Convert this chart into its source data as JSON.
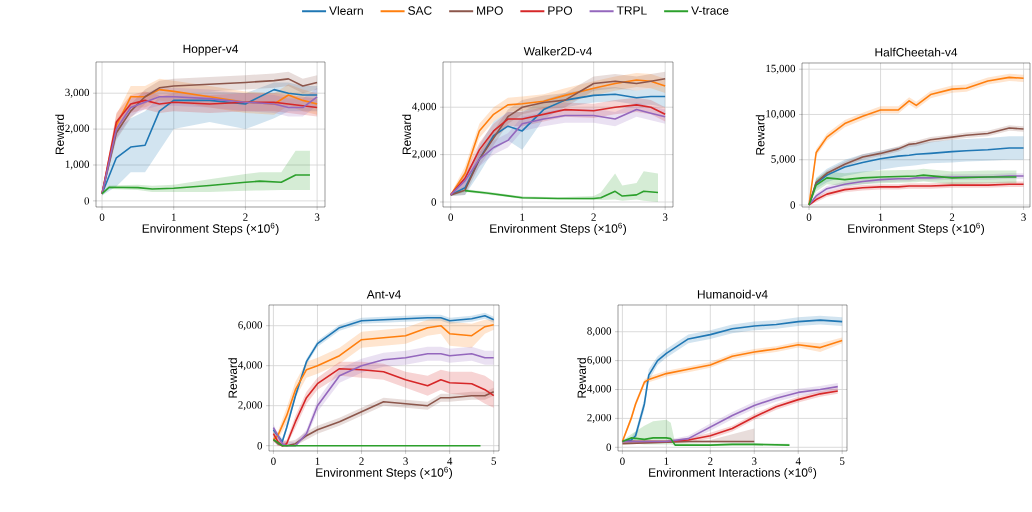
{
  "chart_data": [
    {
      "type": "line",
      "title": "Hopper-v4",
      "xlabel": "Environment Steps (×10$^{6}$)",
      "ylabel": "Reward",
      "xlim": [
        -0.084,
        3.11
      ],
      "ylim": [
        -170,
        3870
      ],
      "xticks": [
        0,
        1,
        2,
        3
      ],
      "yticks": [
        0,
        {
          "value": 1000,
          "label": "1,000"
        },
        {
          "value": 2000,
          "label": "2,000"
        },
        {
          "value": 3000,
          "label": "3,000"
        }
      ],
      "grid": true,
      "legend": "top",
      "line_style": "solid",
      "marker": "none",
      "series": [
        {
          "name": "Vlearn",
          "color": "#1f77b4",
          "x": [
            0,
            0.2,
            0.4,
            0.6,
            0.8,
            1.0,
            1.5,
            2.0,
            2.4,
            2.6,
            2.8,
            3.0
          ],
          "values": [
            200,
            1200,
            1500,
            1550,
            2500,
            2800,
            2800,
            2700,
            3100,
            3000,
            2950,
            2950
          ],
          "lower": [
            150,
            400,
            800,
            800,
            1400,
            2000,
            2200,
            2000,
            2300,
            2500,
            2500,
            2500
          ],
          "upper": [
            250,
            2000,
            2300,
            2500,
            2900,
            3000,
            3050,
            3000,
            3300,
            3300,
            3200,
            3200
          ]
        },
        {
          "name": "SAC",
          "color": "#ff7f0e",
          "x": [
            0,
            0.2,
            0.4,
            0.6,
            0.8,
            1.0,
            1.5,
            2.0,
            2.4,
            2.6,
            2.8,
            3.0
          ],
          "values": [
            200,
            2100,
            2900,
            2900,
            3100,
            3050,
            2900,
            2750,
            2700,
            2950,
            2800,
            2700
          ],
          "lower": [
            150,
            1800,
            2600,
            2600,
            2800,
            2750,
            2600,
            2450,
            2400,
            2650,
            2500,
            2400
          ],
          "upper": [
            250,
            2400,
            3200,
            3200,
            3400,
            3350,
            3200,
            3050,
            3000,
            3250,
            3100,
            3000
          ]
        },
        {
          "name": "MPO",
          "color": "#8c564b",
          "x": [
            0,
            0.2,
            0.4,
            0.6,
            0.8,
            1.0,
            1.5,
            2.0,
            2.4,
            2.6,
            2.8,
            3.0
          ],
          "values": [
            200,
            1900,
            2500,
            2900,
            3150,
            3200,
            3250,
            3300,
            3350,
            3400,
            3200,
            3300
          ],
          "lower": [
            150,
            1700,
            2300,
            2700,
            2950,
            3000,
            3050,
            3100,
            3150,
            3200,
            3000,
            3100
          ],
          "upper": [
            250,
            2100,
            2700,
            3100,
            3350,
            3400,
            3450,
            3500,
            3550,
            3600,
            3400,
            3500
          ]
        },
        {
          "name": "PPO",
          "color": "#d62728",
          "x": [
            0,
            0.2,
            0.4,
            0.6,
            0.8,
            1.0,
            1.5,
            2.0,
            2.4,
            2.6,
            2.8,
            3.0
          ],
          "values": [
            200,
            2200,
            2700,
            2800,
            2700,
            2750,
            2700,
            2750,
            2750,
            2700,
            2650,
            2600
          ],
          "lower": [
            150,
            1950,
            2450,
            2550,
            2450,
            2500,
            2450,
            2500,
            2500,
            2450,
            2400,
            2350
          ],
          "upper": [
            250,
            2450,
            2950,
            3050,
            2950,
            3000,
            2950,
            3000,
            3000,
            2950,
            2900,
            2850
          ]
        },
        {
          "name": "TRPL",
          "color": "#9467bd",
          "x": [
            0,
            0.2,
            0.4,
            0.6,
            0.8,
            1.0,
            1.5,
            2.0,
            2.4,
            2.6,
            2.8,
            3.0
          ],
          "values": [
            200,
            2000,
            2600,
            2750,
            2900,
            2900,
            2850,
            2750,
            2700,
            2600,
            2600,
            2900
          ],
          "lower": [
            150,
            1750,
            2350,
            2550,
            2650,
            2650,
            2600,
            2500,
            2450,
            2350,
            2350,
            2650
          ],
          "upper": [
            250,
            2250,
            2850,
            3000,
            3150,
            3150,
            3100,
            3000,
            2950,
            2850,
            2850,
            3150
          ]
        },
        {
          "name": "V-trace",
          "color": "#2ca02c",
          "x": [
            0,
            0.1,
            0.5,
            0.7,
            1.0,
            1.5,
            2.0,
            2.2,
            2.5,
            2.7,
            2.9
          ],
          "values": [
            200,
            380,
            370,
            330,
            350,
            430,
            520,
            550,
            520,
            720,
            720
          ],
          "lower": [
            150,
            330,
            300,
            250,
            250,
            250,
            280,
            290,
            300,
            300,
            300
          ],
          "upper": [
            250,
            430,
            450,
            420,
            450,
            600,
            750,
            800,
            800,
            1400,
            1400
          ]
        }
      ]
    },
    {
      "type": "line",
      "title": "Walker2D-v4",
      "xlabel": "Environment Steps (×10$^{6}$)",
      "ylabel": "Reward",
      "xlim": [
        -0.108,
        3.11
      ],
      "ylim": [
        -211,
        5910
      ],
      "xticks": [
        0,
        1,
        2,
        3
      ],
      "yticks": [
        0,
        {
          "value": 2000,
          "label": "2,000"
        },
        {
          "value": 4000,
          "label": "4,000"
        }
      ],
      "grid": true,
      "line_style": "solid",
      "marker": "none",
      "series": [
        {
          "color": "#1f77b4",
          "x": [
            0,
            0.2,
            0.4,
            0.6,
            0.8,
            1.0,
            1.3,
            1.6,
            2.0,
            2.3,
            2.6,
            2.8,
            3.0
          ],
          "values": [
            300,
            600,
            1800,
            2800,
            3200,
            3000,
            3900,
            4300,
            4500,
            4550,
            4400,
            4450,
            4450
          ],
          "lower": [
            250,
            300,
            1200,
            2200,
            2600,
            2200,
            3500,
            4000,
            4200,
            4250,
            4100,
            4100,
            4000
          ],
          "upper": [
            350,
            900,
            2400,
            3400,
            3800,
            3800,
            4300,
            4600,
            4800,
            4850,
            4700,
            4800,
            4900
          ]
        },
        {
          "color": "#ff7f0e",
          "x": [
            0,
            0.2,
            0.4,
            0.6,
            0.8,
            1.0,
            1.3,
            1.6,
            2.0,
            2.3,
            2.6,
            2.8,
            3.0
          ],
          "values": [
            300,
            1200,
            3000,
            3700,
            4100,
            4150,
            4250,
            4500,
            4800,
            5000,
            5150,
            5100,
            4900
          ],
          "lower": [
            250,
            900,
            2700,
            3400,
            3800,
            3850,
            3950,
            4200,
            4500,
            4700,
            4850,
            4800,
            4600
          ],
          "upper": [
            350,
            1500,
            3300,
            4000,
            4400,
            4450,
            4550,
            4800,
            5100,
            5300,
            5450,
            5400,
            5200
          ]
        },
        {
          "color": "#8c564b",
          "x": [
            0,
            0.2,
            0.4,
            0.6,
            0.8,
            1.0,
            1.3,
            1.6,
            2.0,
            2.3,
            2.6,
            2.8,
            3.0
          ],
          "values": [
            300,
            500,
            1800,
            2700,
            3600,
            4000,
            4200,
            4300,
            5000,
            5100,
            5000,
            5100,
            5200
          ],
          "lower": [
            250,
            300,
            1500,
            2400,
            3300,
            3700,
            3900,
            4000,
            4700,
            4800,
            4700,
            4800,
            4900
          ],
          "upper": [
            350,
            700,
            2100,
            3000,
            3900,
            4300,
            4500,
            4600,
            5300,
            5400,
            5300,
            5400,
            5500
          ]
        },
        {
          "color": "#d62728",
          "x": [
            0,
            0.2,
            0.4,
            0.6,
            0.8,
            1.0,
            1.3,
            1.6,
            2.0,
            2.3,
            2.6,
            2.8,
            3.0
          ],
          "values": [
            300,
            1000,
            2200,
            3000,
            3500,
            3500,
            3700,
            3900,
            3850,
            4000,
            4100,
            4000,
            3700
          ],
          "lower": [
            250,
            700,
            1900,
            2700,
            3200,
            3200,
            3400,
            3600,
            3550,
            3700,
            3800,
            3700,
            3400
          ],
          "upper": [
            350,
            1300,
            2500,
            3300,
            3800,
            3800,
            4000,
            4200,
            4150,
            4300,
            4400,
            4300,
            4000
          ]
        },
        {
          "color": "#9467bd",
          "x": [
            0,
            0.2,
            0.4,
            0.6,
            0.8,
            1.0,
            1.3,
            1.6,
            2.0,
            2.3,
            2.6,
            2.8,
            3.0
          ],
          "values": [
            300,
            900,
            1800,
            2300,
            2600,
            3300,
            3500,
            3650,
            3650,
            3500,
            3900,
            3750,
            3600
          ],
          "lower": [
            250,
            600,
            1500,
            2000,
            2300,
            3000,
            3200,
            3350,
            3350,
            3200,
            3600,
            3450,
            3300
          ],
          "upper": [
            350,
            1200,
            2100,
            2600,
            2900,
            3600,
            3800,
            3950,
            3950,
            3800,
            4200,
            4050,
            3900
          ]
        },
        {
          "color": "#2ca02c",
          "x": [
            0,
            0.2,
            0.5,
            1.0,
            1.5,
            2.0,
            2.1,
            2.3,
            2.4,
            2.6,
            2.7,
            2.9
          ],
          "values": [
            null,
            480,
            380,
            180,
            150,
            150,
            180,
            450,
            250,
            300,
            450,
            400
          ],
          "lower": [
            250,
            420,
            320,
            130,
            100,
            80,
            80,
            100,
            50,
            100,
            50,
            0
          ],
          "upper": [
            350,
            540,
            440,
            240,
            200,
            250,
            400,
            1200,
            700,
            800,
            1300,
            1200
          ]
        }
      ]
    },
    {
      "type": "line",
      "title": "HalfCheetah-v4",
      "xlabel": "Environment Steps (×10$^{6}$)",
      "ylabel": "Reward",
      "xlim": [
        -0.098,
        3.09
      ],
      "ylim": [
        -220,
        15690
      ],
      "xticks": [
        0,
        1,
        2,
        3
      ],
      "yticks": [
        0,
        {
          "value": 5000,
          "label": "5,000"
        },
        {
          "value": 10000,
          "label": "10,000"
        },
        {
          "value": 15000,
          "label": "15,000"
        }
      ],
      "grid": true,
      "line_style": "solid",
      "marker": "none",
      "series": [
        {
          "color": "#1f77b4",
          "x": [
            0,
            0.1,
            0.25,
            0.5,
            0.75,
            1.0,
            1.25,
            1.4,
            1.5,
            1.7,
            2.0,
            2.2,
            2.5,
            2.8,
            3.0
          ],
          "values": [
            0,
            2400,
            3300,
            4200,
            4700,
            5100,
            5400,
            5500,
            5600,
            5700,
            5900,
            6000,
            6100,
            6300,
            6300
          ],
          "lower": [
            0,
            1800,
            2500,
            3200,
            3600,
            3900,
            4200,
            4300,
            4400,
            4600,
            4700,
            4800,
            4900,
            5000,
            5000
          ],
          "upper": [
            0,
            3000,
            4000,
            5000,
            5600,
            6000,
            6400,
            6600,
            6800,
            7000,
            7200,
            7300,
            7400,
            7600,
            7600
          ]
        },
        {
          "color": "#ff7f0e",
          "x": [
            0,
            0.1,
            0.25,
            0.5,
            0.75,
            1.0,
            1.25,
            1.4,
            1.5,
            1.7,
            2.0,
            2.2,
            2.5,
            2.8,
            3.0
          ],
          "values": [
            0,
            5800,
            7500,
            9000,
            9800,
            10500,
            10500,
            11500,
            11000,
            12200,
            12800,
            12900,
            13700,
            14100,
            14000
          ],
          "lower": [
            0,
            5400,
            7100,
            8600,
            9400,
            10100,
            10100,
            11100,
            10600,
            11800,
            12400,
            12500,
            13300,
            13700,
            13600
          ],
          "upper": [
            0,
            6200,
            7900,
            9400,
            10200,
            10900,
            10900,
            11900,
            11400,
            12600,
            13200,
            13300,
            14100,
            14500,
            14400
          ]
        },
        {
          "color": "#8c564b",
          "x": [
            0,
            0.1,
            0.25,
            0.5,
            0.75,
            1.0,
            1.25,
            1.4,
            1.5,
            1.7,
            2.0,
            2.2,
            2.5,
            2.8,
            3.0
          ],
          "values": [
            0,
            2500,
            3500,
            4500,
            5300,
            5700,
            6200,
            6700,
            6800,
            7200,
            7500,
            7700,
            7900,
            8500,
            8400
          ],
          "lower": [
            0,
            2200,
            3200,
            4200,
            5000,
            5400,
            5900,
            6400,
            6500,
            6900,
            7200,
            7400,
            7600,
            8200,
            8100
          ],
          "upper": [
            0,
            2800,
            3800,
            4800,
            5600,
            6000,
            6500,
            7000,
            7100,
            7500,
            7800,
            8000,
            8200,
            8800,
            8700
          ]
        },
        {
          "color": "#d62728",
          "x": [
            0,
            0.1,
            0.25,
            0.5,
            0.75,
            1.0,
            1.25,
            1.4,
            1.5,
            1.7,
            2.0,
            2.2,
            2.5,
            2.8,
            3.0
          ],
          "values": [
            0,
            600,
            1200,
            1700,
            1900,
            2000,
            2000,
            2100,
            2100,
            2100,
            2200,
            2200,
            2200,
            2300,
            2300
          ],
          "lower": [
            0,
            300,
            900,
            1400,
            1600,
            1700,
            1700,
            1800,
            1800,
            1800,
            1900,
            1900,
            1900,
            2000,
            2000
          ],
          "upper": [
            0,
            900,
            1500,
            2000,
            2200,
            2300,
            2300,
            2400,
            2400,
            2400,
            2500,
            2500,
            2500,
            2600,
            2600
          ]
        },
        {
          "color": "#9467bd",
          "x": [
            0,
            0.1,
            0.25,
            0.5,
            0.75,
            1.0,
            1.25,
            1.4,
            1.5,
            1.7,
            2.0,
            2.2,
            2.5,
            2.8,
            3.0
          ],
          "values": [
            0,
            1000,
            1800,
            2300,
            2600,
            2800,
            2900,
            2900,
            3000,
            3000,
            3100,
            3100,
            3100,
            3200,
            3200
          ],
          "lower": [
            0,
            700,
            1500,
            2000,
            2300,
            2500,
            2600,
            2600,
            2700,
            2700,
            2800,
            2800,
            2800,
            2900,
            2900
          ],
          "upper": [
            0,
            1300,
            2100,
            2600,
            2900,
            3100,
            3200,
            3200,
            3300,
            3300,
            3400,
            3400,
            3400,
            3500,
            3500
          ]
        },
        {
          "color": "#2ca02c",
          "x": [
            0,
            0.1,
            0.25,
            0.5,
            0.75,
            1.0,
            1.5,
            1.6,
            2.0,
            2.5,
            2.9
          ],
          "values": [
            0,
            2200,
            3000,
            2800,
            3000,
            3100,
            3200,
            3300,
            3000,
            3100,
            3100
          ],
          "lower": [
            0,
            1500,
            2300,
            2100,
            2300,
            2400,
            2500,
            2600,
            2300,
            2400,
            2400
          ],
          "upper": [
            0,
            2900,
            3700,
            3500,
            3700,
            3800,
            3900,
            4000,
            3700,
            3800,
            3800
          ]
        }
      ]
    },
    {
      "type": "line",
      "title": "Ant-v4",
      "xlabel": "Environment Steps (×10$^{6}$)",
      "ylabel": "Reward",
      "xlim": [
        -0.1,
        5.12
      ],
      "ylim": [
        -265,
        7035
      ],
      "xticks": [
        0,
        1,
        2,
        3,
        4,
        5
      ],
      "yticks": [
        0,
        {
          "value": 2000,
          "label": "2,000"
        },
        {
          "value": 4000,
          "label": "4,000"
        },
        {
          "value": 6000,
          "label": "6,000"
        }
      ],
      "grid": true,
      "line_style": "solid",
      "marker": "none",
      "series": [
        {
          "color": "#1f77b4",
          "x": [
            0,
            0.1,
            0.2,
            0.3,
            0.5,
            0.75,
            1.0,
            1.5,
            2.0,
            2.5,
            3.0,
            3.5,
            3.8,
            4.0,
            4.5,
            4.8,
            5.0
          ],
          "values": [
            800,
            500,
            200,
            900,
            2500,
            4200,
            5100,
            5900,
            6250,
            6300,
            6350,
            6400,
            6400,
            6250,
            6350,
            6500,
            6300
          ],
          "lower": [
            650,
            350,
            50,
            750,
            2350,
            4050,
            4950,
            5750,
            6100,
            6150,
            6200,
            6250,
            6250,
            6100,
            6200,
            6350,
            6150
          ],
          "upper": [
            950,
            650,
            350,
            1050,
            2650,
            4350,
            5250,
            6050,
            6400,
            6450,
            6500,
            6550,
            6550,
            6400,
            6500,
            6650,
            6450
          ]
        },
        {
          "color": "#ff7f0e",
          "x": [
            0,
            0.1,
            0.2,
            0.3,
            0.5,
            0.75,
            1.0,
            1.5,
            2.0,
            2.5,
            3.0,
            3.5,
            3.8,
            4.0,
            4.5,
            4.8,
            5.0
          ],
          "values": [
            300,
            500,
            1000,
            1500,
            2800,
            3800,
            4000,
            4500,
            5300,
            5400,
            5500,
            5900,
            6000,
            5600,
            5500,
            5950,
            6050
          ],
          "lower": [
            200,
            300,
            700,
            1100,
            2400,
            3400,
            3600,
            4100,
            4900,
            5000,
            5100,
            5500,
            5600,
            5000,
            4900,
            5600,
            5800
          ],
          "upper": [
            400,
            700,
            1300,
            1900,
            3200,
            4200,
            4400,
            4900,
            5700,
            5800,
            5900,
            6300,
            6400,
            6200,
            6100,
            6300,
            6300
          ]
        },
        {
          "color": "#8c564b",
          "x": [
            0,
            0.1,
            0.2,
            0.3,
            0.5,
            0.75,
            1.0,
            1.5,
            2.0,
            2.5,
            3.0,
            3.5,
            3.8,
            4.0,
            4.5,
            4.8,
            5.0
          ],
          "values": [
            300,
            100,
            0,
            0,
            100,
            500,
            800,
            1200,
            1700,
            2200,
            2100,
            2000,
            2400,
            2400,
            2500,
            2500,
            2700
          ],
          "lower": [
            200,
            0,
            0,
            0,
            0,
            300,
            600,
            1000,
            1500,
            2000,
            1900,
            1800,
            2200,
            2200,
            2300,
            2300,
            2500
          ],
          "upper": [
            400,
            300,
            200,
            200,
            300,
            700,
            1000,
            1400,
            1900,
            2400,
            2300,
            2200,
            2600,
            2600,
            2700,
            2700,
            2900
          ]
        },
        {
          "color": "#d62728",
          "x": [
            0,
            0.1,
            0.2,
            0.3,
            0.5,
            0.75,
            1.0,
            1.5,
            2.0,
            2.5,
            3.0,
            3.5,
            3.8,
            4.0,
            4.5,
            4.8,
            5.0
          ],
          "values": [
            600,
            200,
            0,
            100,
            1200,
            2400,
            3100,
            3850,
            3800,
            3700,
            3300,
            3000,
            3300,
            3150,
            3100,
            2800,
            2500
          ],
          "lower": [
            400,
            0,
            0,
            0,
            900,
            2100,
            2800,
            3500,
            3400,
            3300,
            2900,
            2500,
            2800,
            2600,
            2500,
            2100,
            1900
          ],
          "upper": [
            800,
            400,
            200,
            300,
            1500,
            2700,
            3400,
            4200,
            4200,
            4100,
            3700,
            3500,
            3800,
            3700,
            3700,
            3500,
            3200
          ]
        },
        {
          "color": "#9467bd",
          "x": [
            0,
            0.1,
            0.2,
            0.3,
            0.5,
            0.75,
            1.0,
            1.5,
            2.0,
            2.5,
            3.0,
            3.5,
            3.8,
            4.0,
            4.5,
            4.8,
            5.0
          ],
          "values": [
            900,
            500,
            100,
            0,
            0,
            600,
            2000,
            3500,
            4000,
            4300,
            4400,
            4600,
            4600,
            4500,
            4600,
            4400,
            4400
          ],
          "lower": [
            700,
            300,
            50,
            0,
            0,
            400,
            1700,
            3150,
            3650,
            3950,
            4050,
            4250,
            4250,
            4150,
            4250,
            4050,
            4050
          ],
          "upper": [
            1100,
            600,
            300,
            200,
            200,
            800,
            2300,
            3850,
            4350,
            4650,
            4750,
            4950,
            4950,
            4850,
            4950,
            4750,
            4750
          ]
        },
        {
          "color": "#2ca02c",
          "x": [
            0,
            0.2,
            1.0,
            2.0,
            3.0,
            4.0,
            4.7
          ],
          "values": [
            300,
            0,
            0,
            0,
            0,
            0,
            0
          ]
        }
      ]
    },
    {
      "type": "line",
      "title": "Humanoid-v4",
      "xlabel": "Environment Interactions (×10$^{6}$)",
      "ylabel": "Reward",
      "xlim": [
        -0.1,
        5.11
      ],
      "ylim": [
        -255,
        9850
      ],
      "xticks": [
        0,
        1,
        2,
        3,
        4,
        5
      ],
      "yticks": [
        0,
        {
          "value": 2000,
          "label": "2,000"
        },
        {
          "value": 4000,
          "label": "4,000"
        },
        {
          "value": 6000,
          "label": "6,000"
        },
        {
          "value": 8000,
          "label": "8,000"
        }
      ],
      "grid": true,
      "line_style": "solid",
      "marker": "none",
      "series": [
        {
          "color": "#1f77b4",
          "x": [
            0,
            0.2,
            0.3,
            0.5,
            0.6,
            0.8,
            1.0,
            1.5,
            2.0,
            2.5,
            3.0,
            3.5,
            4.0,
            4.5,
            5.0
          ],
          "values": [
            400,
            500,
            800,
            3000,
            5000,
            6000,
            6500,
            7500,
            7800,
            8200,
            8400,
            8500,
            8700,
            8800,
            8700
          ],
          "lower": [
            300,
            300,
            500,
            2600,
            4600,
            5700,
            6200,
            7200,
            7500,
            7900,
            8100,
            8200,
            8400,
            8500,
            8400
          ],
          "upper": [
            500,
            700,
            1100,
            3400,
            5400,
            6300,
            6800,
            7800,
            8100,
            8500,
            8700,
            8800,
            9000,
            9100,
            9000
          ]
        },
        {
          "color": "#ff7f0e",
          "x": [
            0,
            0.2,
            0.3,
            0.5,
            0.6,
            0.8,
            1.0,
            1.5,
            2.0,
            2.5,
            3.0,
            3.5,
            4.0,
            4.5,
            5.0
          ],
          "values": [
            400,
            2000,
            3000,
            4500,
            4700,
            4900,
            5100,
            5400,
            5700,
            6300,
            6600,
            6800,
            7100,
            6900,
            7400
          ],
          "lower": [
            300,
            1800,
            2800,
            4300,
            4500,
            4700,
            4900,
            5200,
            5500,
            6100,
            6400,
            6600,
            6900,
            6600,
            7200
          ],
          "upper": [
            500,
            2200,
            3200,
            4700,
            4900,
            5100,
            5300,
            5600,
            5900,
            6500,
            6800,
            7000,
            7300,
            7200,
            7600
          ]
        },
        {
          "color": "#8c564b",
          "x": [
            0,
            0.5,
            1.0,
            1.5,
            2.0,
            2.5,
            3.0
          ],
          "values": [
            250,
            300,
            350,
            400,
            400,
            400,
            400
          ],
          "lower": [
            200,
            250,
            300,
            300,
            300,
            300,
            300
          ],
          "upper": [
            300,
            350,
            400,
            450,
            500,
            900,
            1300
          ]
        },
        {
          "color": "#d62728",
          "x": [
            0,
            1.0,
            1.5,
            2.0,
            2.5,
            3.0,
            3.5,
            4.0,
            4.5,
            4.9
          ],
          "values": [
            400,
            400,
            500,
            800,
            1300,
            2100,
            2800,
            3300,
            3700,
            3900
          ],
          "lower": [
            300,
            300,
            350,
            600,
            1100,
            1900,
            2600,
            3100,
            3500,
            3700
          ],
          "upper": [
            500,
            500,
            650,
            1000,
            1500,
            2300,
            3000,
            3500,
            3900,
            4100
          ]
        },
        {
          "color": "#9467bd",
          "x": [
            0,
            1.0,
            1.5,
            2.0,
            2.5,
            3.0,
            3.5,
            4.0,
            4.5,
            4.9
          ],
          "values": [
            400,
            400,
            600,
            1400,
            2200,
            2900,
            3400,
            3800,
            4000,
            4200
          ],
          "lower": [
            300,
            300,
            400,
            1150,
            1950,
            2650,
            3150,
            3550,
            3750,
            3950
          ],
          "upper": [
            500,
            500,
            800,
            1650,
            2450,
            3150,
            3650,
            4050,
            4250,
            4450
          ]
        },
        {
          "color": "#2ca02c",
          "x": [
            0,
            0.2,
            0.5,
            0.7,
            1.0,
            1.1,
            1.2,
            2.0,
            2.5,
            3.0,
            3.8
          ],
          "values": [
            400,
            650,
            550,
            650,
            650,
            600,
            150,
            150,
            200,
            200,
            150
          ],
          "lower": [
            350,
            300,
            200,
            200,
            200,
            200,
            100,
            100,
            100,
            100,
            100
          ],
          "upper": [
            450,
            900,
            1500,
            1800,
            1900,
            1700,
            300,
            250,
            300,
            300,
            250
          ]
        }
      ]
    }
  ]
}
